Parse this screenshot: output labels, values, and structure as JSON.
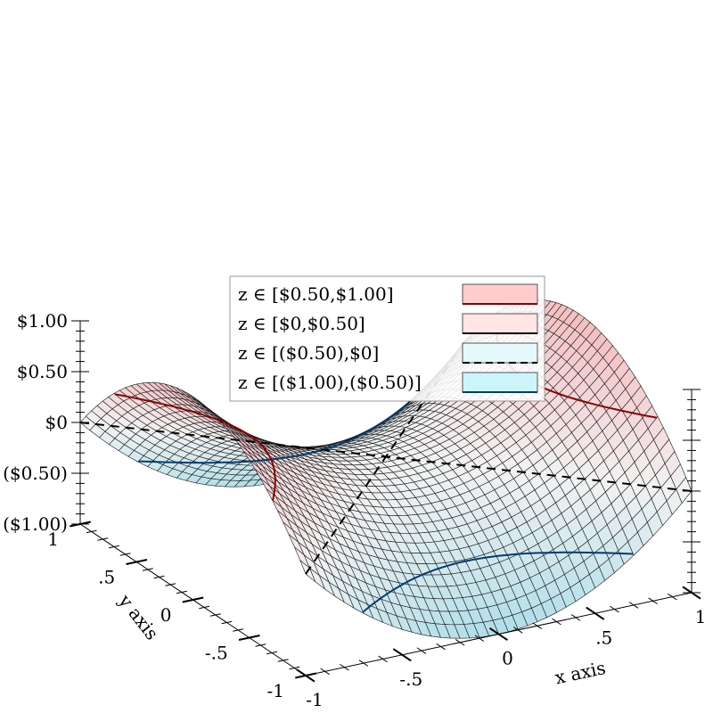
{
  "chart_data": {
    "type": "surface3d",
    "function": "z = x^2 - y^2",
    "x_range": [
      -1,
      1
    ],
    "y_range": [
      -1,
      1
    ],
    "z_range": [
      -1,
      1
    ],
    "grid_samples": 40,
    "x_label": "x axis",
    "y_label": "y axis",
    "x_tick_labels": [
      "-1",
      "-.5",
      "0",
      ".5",
      "1"
    ],
    "y_tick_labels": [
      "-1",
      "-.5",
      "0",
      ".5",
      "1"
    ],
    "z_tick_labels": [
      "($1.00)",
      "($0.50)",
      "$0",
      "$0.50",
      "$1.00"
    ],
    "contour_levels": [
      -0.5,
      0,
      0.5
    ],
    "legend": [
      {
        "label": "z ∈ [$0.50,$1.00]",
        "range": [
          0.5,
          1.0
        ],
        "color": "#ffcccc",
        "line_color": "#8b0000",
        "line_style": "solid"
      },
      {
        "label": "z ∈ [$0,$0.50]",
        "range": [
          0.0,
          0.5
        ],
        "color": "#ffe5e5",
        "line_color": "#000000",
        "line_style": "solid"
      },
      {
        "label": "z ∈ [($0.50),$0]",
        "range": [
          -0.5,
          0.0
        ],
        "color": "#e5f9fc",
        "line_color": "#000000",
        "line_style": "dashed"
      },
      {
        "label": "z ∈ [($1.00),($0.50)]",
        "range": [
          -1.0,
          -0.5
        ],
        "color": "#ccf5fb",
        "line_color": "#003c6e",
        "line_style": "solid"
      }
    ],
    "legend_position": "center"
  }
}
